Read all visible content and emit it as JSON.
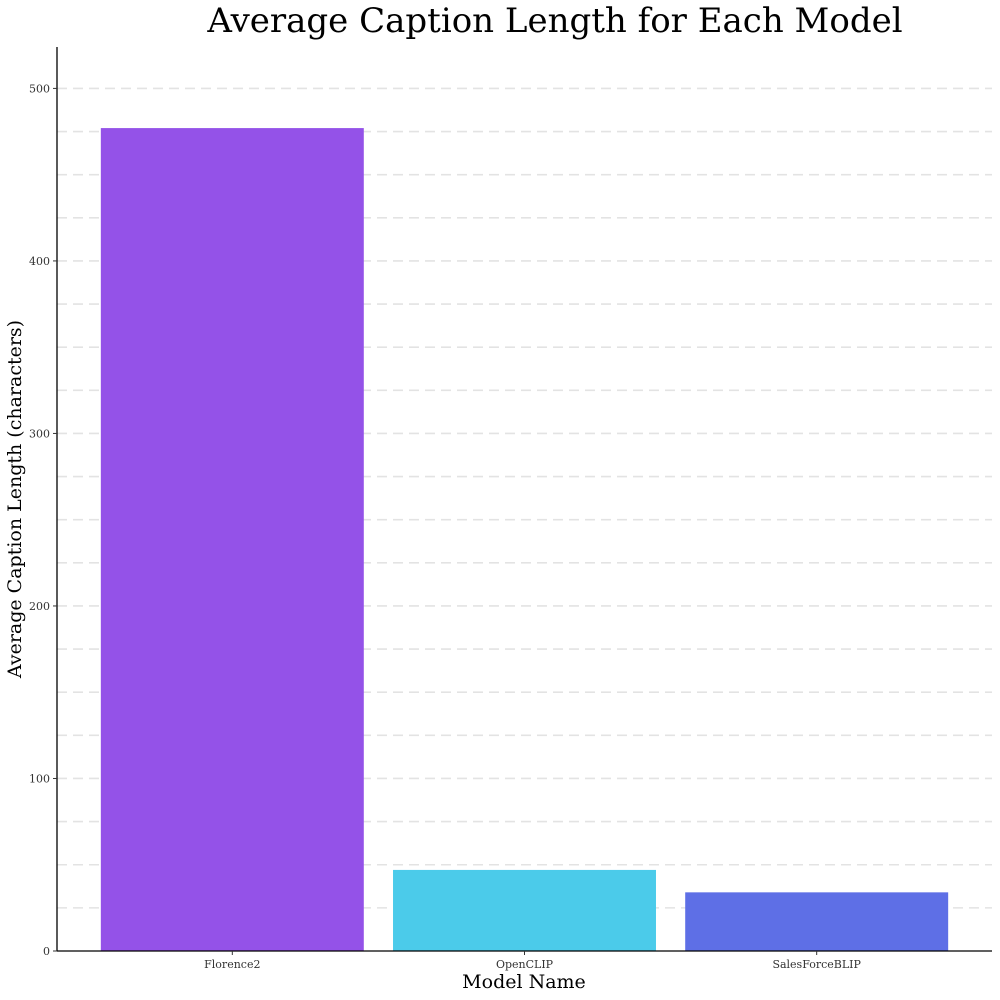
{
  "chart_data": {
    "type": "bar",
    "title": "Average Caption Length for Each Model",
    "xlabel": "Model Name",
    "ylabel": "Average Caption Length (characters)",
    "categories": [
      "Florence2",
      "OpenCLIP",
      "SalesForceBLIP"
    ],
    "values": [
      477,
      47,
      34
    ],
    "colors": [
      "#9452E8",
      "#4BCBEA",
      "#5E6FE6"
    ],
    "ylim": [
      0,
      524
    ],
    "yticks": [
      0,
      100,
      200,
      300,
      400,
      500
    ],
    "ytick_labels": [
      "0",
      "100",
      "200",
      "300",
      "400",
      "500"
    ],
    "grid": "horizontal dashed, major and minor",
    "grid_step": 25,
    "legend": "none"
  }
}
